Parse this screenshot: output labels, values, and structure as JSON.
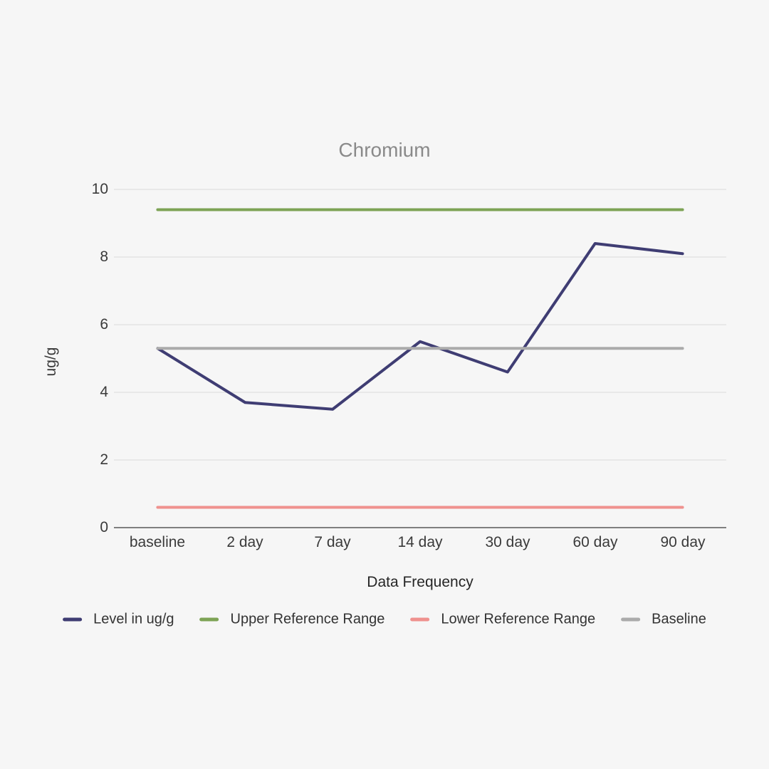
{
  "page": {
    "background_color": "#f6f6f6"
  },
  "chart_data": {
    "type": "line",
    "title": "Chromium",
    "xlabel": "Data Frequency",
    "ylabel": "ug/g",
    "categories": [
      "baseline",
      "2 day",
      "7 day",
      "14 day",
      "30 day",
      "60 day",
      "90 day"
    ],
    "yticks": [
      "0",
      "2",
      "4",
      "6",
      "8",
      "10"
    ],
    "ytick_values": [
      0,
      2,
      4,
      6,
      8,
      10
    ],
    "ylim": [
      0,
      10
    ],
    "grid": true,
    "legend_position": "bottom",
    "colors": {
      "grid": "#d9d9d9",
      "axis": "#7f7f7f",
      "title": "#8a8a8a",
      "text": "#3a3a3a"
    },
    "series": [
      {
        "name": "Level in ug/g",
        "color": "#3f3d73",
        "values": [
          5.3,
          3.7,
          3.5,
          5.5,
          4.6,
          8.4,
          8.1
        ]
      },
      {
        "name": "Upper Reference Range",
        "color": "#7da355",
        "values": [
          9.4,
          9.4,
          9.4,
          9.4,
          9.4,
          9.4,
          9.4
        ]
      },
      {
        "name": "Lower Reference Range",
        "color": "#ef918e",
        "values": [
          0.6,
          0.6,
          0.6,
          0.6,
          0.6,
          0.6,
          0.6
        ]
      },
      {
        "name": "Baseline",
        "color": "#ababab",
        "values": [
          5.3,
          5.3,
          5.3,
          5.3,
          5.3,
          5.3,
          5.3
        ]
      }
    ]
  }
}
